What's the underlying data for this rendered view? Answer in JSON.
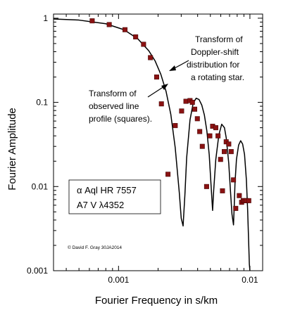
{
  "chart_data": {
    "type": "line",
    "xlabel": "Fourier Frequency in s/km",
    "ylabel": "Fourier Amplitude",
    "xscale": "log",
    "yscale": "log",
    "xlim": [
      0.00032,
      0.0125
    ],
    "ylim": [
      0.001,
      1.12
    ],
    "x_ticks": [
      {
        "value": 0.001,
        "label": "0.001"
      },
      {
        "value": 0.01,
        "label": "0.01"
      }
    ],
    "y_ticks": [
      {
        "value": 1,
        "label": "1"
      },
      {
        "value": 0.1,
        "label": "0.1"
      },
      {
        "value": 0.01,
        "label": "0.01"
      },
      {
        "value": 0.001,
        "label": "0.001"
      }
    ],
    "grid": false,
    "series": [
      {
        "kind": "curve",
        "color": "#000000",
        "x": [
          0.00032,
          0.0005,
          0.0008,
          0.0011,
          0.0014,
          0.0017,
          0.0019,
          0.0021,
          0.0023,
          0.0025,
          0.0027,
          0.0029,
          0.003,
          0.0031,
          0.0032,
          0.0033,
          0.0035,
          0.0037,
          0.0039,
          0.0041,
          0.0043,
          0.0045,
          0.0047,
          0.0049,
          0.0051,
          0.0052,
          0.0053,
          0.0055,
          0.0058,
          0.0061,
          0.0064,
          0.0066,
          0.0069,
          0.0071,
          0.0073,
          0.0075,
          0.0076,
          0.0077,
          0.0079,
          0.0082,
          0.0085,
          0.0088,
          0.0091,
          0.0094,
          0.0096,
          0.0098,
          0.0099,
          0.01
        ],
        "y": [
          0.98,
          0.95,
          0.86,
          0.73,
          0.57,
          0.41,
          0.31,
          0.215,
          0.135,
          0.072,
          0.029,
          0.0085,
          0.0042,
          0.0034,
          0.008,
          0.022,
          0.062,
          0.098,
          0.112,
          0.108,
          0.093,
          0.071,
          0.046,
          0.024,
          0.0085,
          0.0052,
          0.009,
          0.021,
          0.041,
          0.055,
          0.05,
          0.038,
          0.019,
          0.0092,
          0.0047,
          0.0035,
          0.006,
          0.011,
          0.021,
          0.031,
          0.035,
          0.032,
          0.024,
          0.012,
          0.0055,
          0.002,
          0.0012,
          0.001
        ]
      },
      {
        "kind": "markers",
        "name": "observed line profile (squares)",
        "color": "#8a1212",
        "x": [
          0.00063,
          0.00085,
          0.00112,
          0.00135,
          0.00155,
          0.00175,
          0.00195,
          0.00212,
          0.00238,
          0.0027,
          0.00302,
          0.00326,
          0.0035,
          0.00365,
          0.0038,
          0.00398,
          0.00415,
          0.00434,
          0.00468,
          0.00495,
          0.0052,
          0.0055,
          0.00572,
          0.00598,
          0.00618,
          0.00638,
          0.0066,
          0.0069,
          0.0072,
          0.0075,
          0.0078,
          0.0083,
          0.00865,
          0.0089,
          0.0091,
          0.0094,
          0.0098
        ],
        "y": [
          0.93,
          0.84,
          0.73,
          0.6,
          0.49,
          0.34,
          0.2,
          0.096,
          0.014,
          0.053,
          0.079,
          0.103,
          0.105,
          0.1,
          0.083,
          0.064,
          0.045,
          0.03,
          0.01,
          0.04,
          0.052,
          0.05,
          0.04,
          0.021,
          0.0089,
          0.026,
          0.034,
          0.032,
          0.026,
          0.012,
          0.0055,
          0.0078,
          0.0065,
          0.0068,
          0.0068,
          0.0068,
          0.0068
        ]
      }
    ],
    "annotations": [
      {
        "lines": [
          "Transform of",
          "Doppler-shift",
          "distribution for",
          "a rotating star."
        ]
      },
      {
        "lines": [
          "Transform of",
          "observed line",
          "profile (squares)."
        ]
      }
    ],
    "star_box": {
      "line1": "α Aql   HR 7557",
      "line2": "A7  V   λ4352"
    },
    "credit": "© David F. Gray 30JA2014"
  }
}
